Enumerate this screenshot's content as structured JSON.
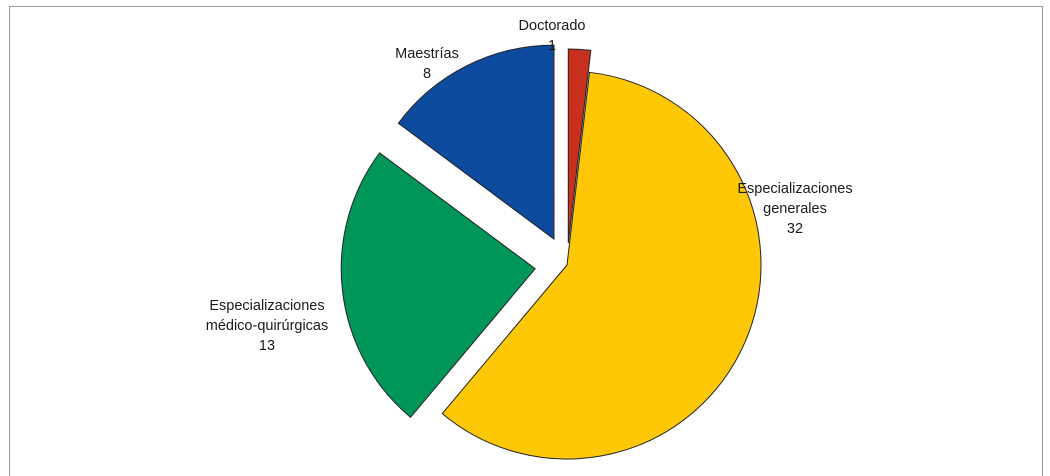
{
  "chart_data": {
    "type": "pie",
    "title": "",
    "slices": [
      {
        "label_lines": [
          "Doctorado"
        ],
        "value_text": "1",
        "value": 1,
        "color": "#c9311f",
        "exploded": true
      },
      {
        "label_lines": [
          "Especializaciones",
          "generales"
        ],
        "value_text": "32",
        "value": 32,
        "color": "#fec807",
        "exploded": false
      },
      {
        "label_lines": [
          "Especializaciones",
          "médico-quirúrgicas"
        ],
        "value_text": "13",
        "value": 13,
        "color": "#00965a",
        "exploded": true
      },
      {
        "label_lines": [
          "Maestrías"
        ],
        "value_text": "8",
        "value": 8,
        "color": "#0d4b9e",
        "exploded": true
      }
    ],
    "start_angle_deg": 0,
    "direction": "clockwise",
    "legend": "none"
  }
}
